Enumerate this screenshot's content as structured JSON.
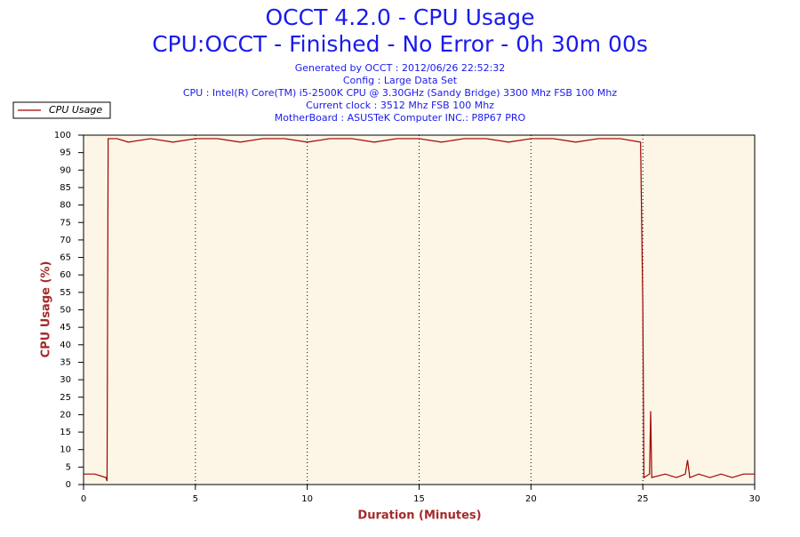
{
  "chart_data": {
    "type": "line",
    "title": "OCCT 4.2.0 - CPU Usage",
    "subtitle": "CPU:OCCT - Finished - No Error - 0h 30m 00s",
    "info": [
      "Generated by OCCT : 2012/06/26 22:52:32",
      "Config : Large Data Set",
      "CPU : Intel(R) Core(TM) i5-2500K CPU @ 3.30GHz (Sandy Bridge) 3300 Mhz FSB 100 Mhz",
      "Current clock : 3512 Mhz FSB 100 Mhz",
      "MotherBoard : ASUSTeK Computer INC.: P8P67 PRO"
    ],
    "x_label": "Duration (Minutes)",
    "y_label": "CPU Usage (%)",
    "x": [
      0,
      0.5,
      1.0,
      1.05,
      1.1,
      1.5,
      2,
      3,
      4,
      5,
      6,
      7,
      8,
      9,
      10,
      11,
      12,
      13,
      14,
      15,
      16,
      17,
      18,
      19,
      20,
      21,
      22,
      23,
      24,
      24.9,
      25.0,
      25.05,
      25.3,
      25.35,
      25.4,
      26,
      26.5,
      26.9,
      27,
      27.1,
      27.5,
      28,
      28.5,
      29,
      29.5,
      30
    ],
    "series": [
      {
        "name": "CPU Usage",
        "color": "#a00000",
        "values": [
          3,
          3,
          2,
          1,
          99,
          99,
          98,
          99,
          98,
          99,
          99,
          98,
          99,
          99,
          98,
          99,
          99,
          98,
          99,
          99,
          98,
          99,
          99,
          98,
          99,
          99,
          98,
          99,
          99,
          98,
          51,
          2,
          3,
          21,
          2,
          3,
          2,
          3,
          7,
          2,
          3,
          2,
          3,
          2,
          3,
          3
        ]
      }
    ],
    "xlim": [
      0,
      30
    ],
    "xticks": [
      0,
      5,
      10,
      15,
      20,
      25,
      30
    ],
    "ylim": [
      0,
      100
    ],
    "yticks": [
      0,
      5,
      10,
      15,
      20,
      25,
      30,
      35,
      40,
      45,
      50,
      55,
      60,
      65,
      70,
      75,
      80,
      85,
      90,
      95,
      100
    ],
    "grid_x": true,
    "legend": "top-left"
  }
}
